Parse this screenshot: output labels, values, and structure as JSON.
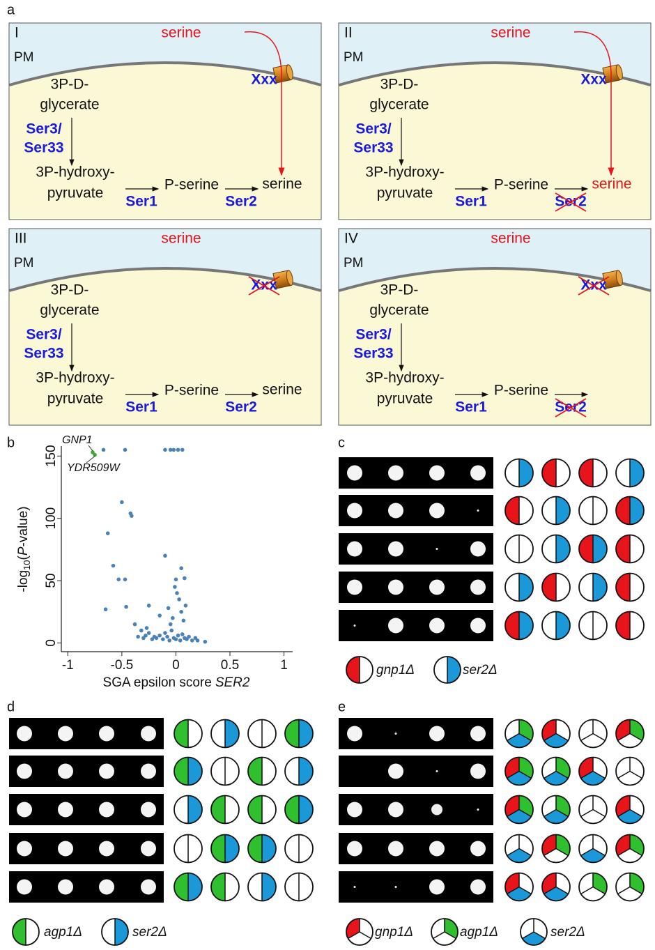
{
  "panel_a": {
    "letter": "a",
    "panels": [
      {
        "numeral": "I",
        "serine_out": "serine",
        "pm": "PM",
        "transporter": "Xxx",
        "substrate": [
          "3P-D-",
          "glycerate"
        ],
        "enzyme1": [
          "Ser3/",
          "Ser33"
        ],
        "intermediate1": [
          "3P-hydroxy-",
          "pyruvate"
        ],
        "intermediate2": "P-serine",
        "product": "serine",
        "enzyme2": "Ser1",
        "enzyme3": "Ser2"
      },
      {
        "numeral": "II",
        "serine_out": "serine",
        "pm": "PM",
        "transporter": "Xxx",
        "substrate": [
          "3P-D-",
          "glycerate"
        ],
        "enzyme1": [
          "Ser3/",
          "Ser33"
        ],
        "intermediate1": [
          "3P-hydroxy-",
          "pyruvate"
        ],
        "intermediate2": "P-serine",
        "product": "serine",
        "enzyme2": "Ser1",
        "enzyme3": "Ser2"
      },
      {
        "numeral": "III",
        "serine_out": "serine",
        "pm": "PM",
        "transporter": "Xxx",
        "substrate": [
          "3P-D-",
          "glycerate"
        ],
        "enzyme1": [
          "Ser3/",
          "Ser33"
        ],
        "intermediate1": [
          "3P-hydroxy-",
          "pyruvate"
        ],
        "intermediate2": "P-serine",
        "product": "serine",
        "enzyme2": "Ser1",
        "enzyme3": "Ser2"
      },
      {
        "numeral": "IV",
        "serine_out": "serine",
        "pm": "PM",
        "transporter": "Xxx",
        "substrate": [
          "3P-D-",
          "glycerate"
        ],
        "enzyme1": [
          "Ser3/",
          "Ser33"
        ],
        "intermediate1": [
          "3P-hydroxy-",
          "pyruvate"
        ],
        "intermediate2": "P-serine",
        "enzyme2": "Ser1",
        "enzyme3": "Ser2"
      }
    ]
  },
  "panel_b": {
    "letter": "b"
  },
  "chart_data": {
    "type": "scatter",
    "x": [
      -0.67,
      -0.47,
      -0.1,
      -0.05,
      -0.02,
      0.02,
      0.06,
      -0.5,
      -0.42,
      -0.41,
      -0.63,
      -0.58,
      -0.53,
      -0.47,
      -0.1,
      0.05,
      -0.65,
      -0.46,
      0.0,
      0.08,
      -0.38,
      -0.32,
      -0.35,
      -0.3,
      -0.28,
      -0.25,
      -0.22,
      -0.2,
      -0.18,
      -0.15,
      -0.12,
      -0.1,
      -0.08,
      -0.06,
      -0.04,
      -0.02,
      0.0,
      0.02,
      0.04,
      0.06,
      0.08,
      0.1,
      0.12,
      0.15,
      0.18,
      0.2,
      -0.27,
      -0.05,
      -0.03,
      0.05,
      0.07,
      -0.25,
      -0.15,
      -0.07,
      0.03,
      0.09,
      -0.01,
      0.01,
      0.27
    ],
    "values": [
      155,
      155,
      155,
      155,
      155,
      155,
      155,
      113,
      104,
      102,
      88,
      62,
      51,
      51,
      70,
      60,
      27,
      29,
      51,
      52,
      15,
      10,
      5,
      4,
      6,
      8,
      3,
      5,
      4,
      6,
      3,
      8,
      5,
      2,
      10,
      4,
      3,
      6,
      2,
      7,
      4,
      3,
      5,
      2,
      4,
      2,
      12,
      15,
      20,
      25,
      18,
      30,
      22,
      28,
      35,
      30,
      45,
      40,
      1
    ],
    "color": "#4a82b8",
    "highlight": {
      "x": [
        -0.77,
        -0.75
      ],
      "values": [
        153,
        151
      ],
      "color": "#3aaa35"
    },
    "annotations": [
      "GNP1",
      "YDR509W"
    ],
    "xlim": [
      -1.06,
      1.08
    ],
    "ylim": [
      -7,
      158
    ],
    "xticks": [
      -1,
      -0.5,
      0,
      0.5,
      1
    ],
    "yticks": [
      0,
      50,
      100,
      150
    ],
    "xlabel": [
      "SGA epsilon score",
      "SER2"
    ],
    "ylabel": [
      "-log",
      "10",
      "(",
      "P",
      "-value)"
    ]
  },
  "panel_c": {
    "letter": "c",
    "legend": [
      "gnp1Δ",
      "ser2Δ"
    ]
  },
  "panel_d": {
    "letter": "d",
    "legend": [
      "agp1Δ",
      "ser2Δ"
    ]
  },
  "panel_e": {
    "letter": "e",
    "legend": [
      "gnp1Δ",
      "agp1Δ",
      "ser2Δ"
    ]
  }
}
